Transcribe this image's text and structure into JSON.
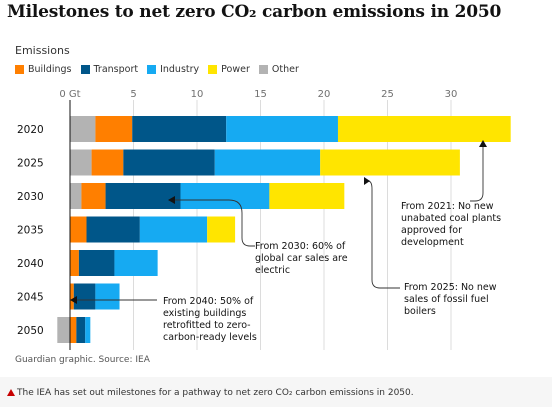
{
  "title": "Milestones to net zero CO₂ carbon emissions in 2050",
  "caption": "The IEA has set out milestones for a pathway to net zero CO₂ carbon emissions in 2050.",
  "source": "Guardian graphic. Source: IEA",
  "colors": {
    "Other": "#b3b3b3",
    "Buildings": "#ff7f00",
    "Transport": "#005689",
    "Industry": "#16aaf2",
    "Power": "#ffe500"
  },
  "legend": [
    "Buildings",
    "Transport",
    "Industry",
    "Power",
    "Other"
  ],
  "annotations": [
    "From 2021: No new unabated coal plants approved for development",
    "From 2025: No new sales of fossil fuel boilers",
    "From 2030: 60% of global car sales are electric",
    "From 2040: 50% of existing buildings retrofitted to zero-carbon-ready levels"
  ],
  "chart_data": {
    "type": "bar",
    "orientation": "horizontal",
    "stacked": true,
    "ylabel": "Emissions",
    "xlabel": "",
    "xlim": [
      -1,
      35
    ],
    "tick_labels": [
      "0 Gt",
      "5",
      "10",
      "15",
      "20",
      "25",
      "30"
    ],
    "ticks": [
      0,
      5,
      10,
      15,
      20,
      25,
      30
    ],
    "categories": [
      "2020",
      "2025",
      "2030",
      "2035",
      "2040",
      "2045",
      "2050"
    ],
    "series": [
      {
        "name": "Other",
        "values": [
          2.0,
          1.7,
          0.9,
          0.0,
          0.0,
          0.0,
          -1.0
        ]
      },
      {
        "name": "Buildings",
        "values": [
          2.9,
          2.5,
          1.9,
          1.3,
          0.7,
          0.3,
          0.5
        ]
      },
      {
        "name": "Transport",
        "values": [
          7.4,
          7.2,
          5.9,
          4.2,
          2.8,
          1.7,
          0.7
        ]
      },
      {
        "name": "Industry",
        "values": [
          8.8,
          8.3,
          7.0,
          5.3,
          3.4,
          1.9,
          0.4
        ]
      },
      {
        "name": "Power",
        "values": [
          13.6,
          11.0,
          5.9,
          2.2,
          0.0,
          0.0,
          0.0
        ]
      }
    ]
  }
}
